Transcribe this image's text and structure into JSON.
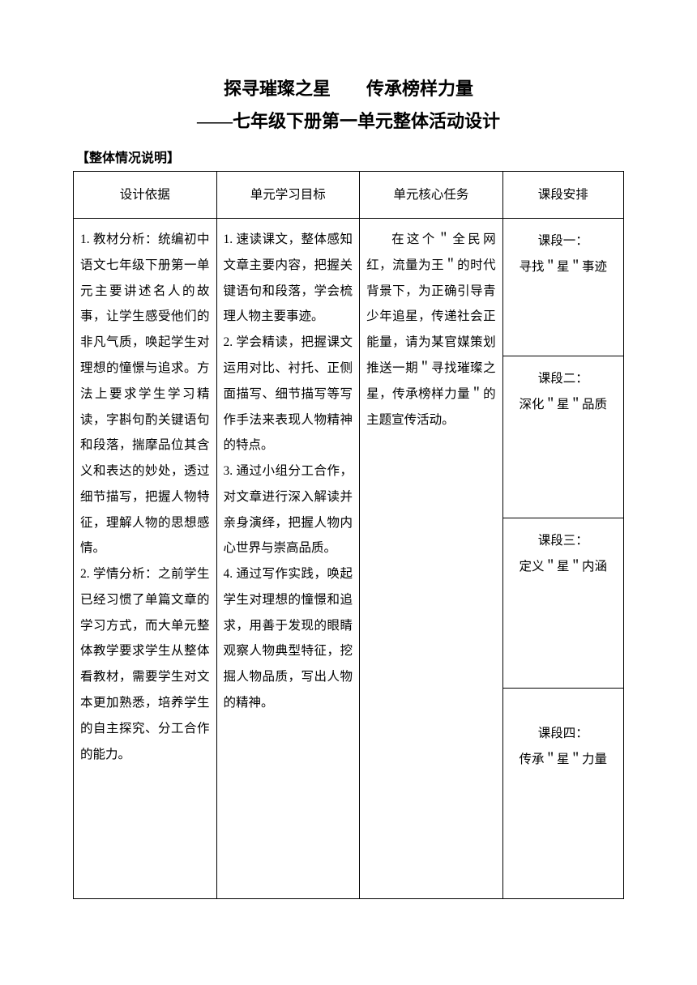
{
  "title_left": "探寻璀璨之星",
  "title_right": "传承榜样力量",
  "subtitle": "——七年级下册第一单元整体活动设计",
  "section_header": "【整体情况说明】",
  "headers": {
    "col1": "设计依据",
    "col2": "单元学习目标",
    "col3": "单元核心任务",
    "col4": "课段安排"
  },
  "basis": "1. 教材分析：统编初中语文七年级下册第一单元主要讲述名人的故事，让学生感受他们的非凡气质，唤起学生对理想的憧憬与追求。方法上要求学生学习精读，字斟句酌关键语句和段落，揣摩品位其含义和表达的妙处，透过细节描写，把握人物特征，理解人物的思想感情。\n2. 学情分析：之前学生已经习惯了单篇文章的学习方式，而大单元整体教学要求学生从整体看教材，需要学生对文本更加熟悉，培养学生的自主探究、分工合作的能力。",
  "objectives": "1. 速读课文，整体感知文章主要内容，把握关键语句和段落，学会梳理人物主要事迹。\n2. 学会精读，把握课文运用对比、衬托、正侧面描写、细节描写等写作手法来表现人物精神的特点。\n3. 通过小组分工合作，对文章进行深入解读并亲身演绎，把握人物内心世界与崇高品质。\n4. 通过写作实践，唤起学生对理想的憧憬和追求，用善于发现的眼睛观察人物典型特征，挖掘人物品质，写出人物的精神。",
  "core_task": "在这个＂全民网红，流量为王＂的时代背景下，为正确引导青少年追星，传递社会正能量，请为某官媒策划推送一期＂寻找璀璨之星，传承榜样力量＂的主题宣传活动。",
  "segments": {
    "s1_title": "课段一：",
    "s1_text": "寻找＂星＂事迹",
    "s2_title": "课段二：",
    "s2_text": "深化＂星＂品质",
    "s3_title": "课段三：",
    "s3_text": "定义＂星＂内涵",
    "s4_title": "课段四：",
    "s4_text": "传承＂星＂力量"
  },
  "colors": {
    "text": "#000000",
    "background": "#ffffff",
    "border": "#000000"
  }
}
